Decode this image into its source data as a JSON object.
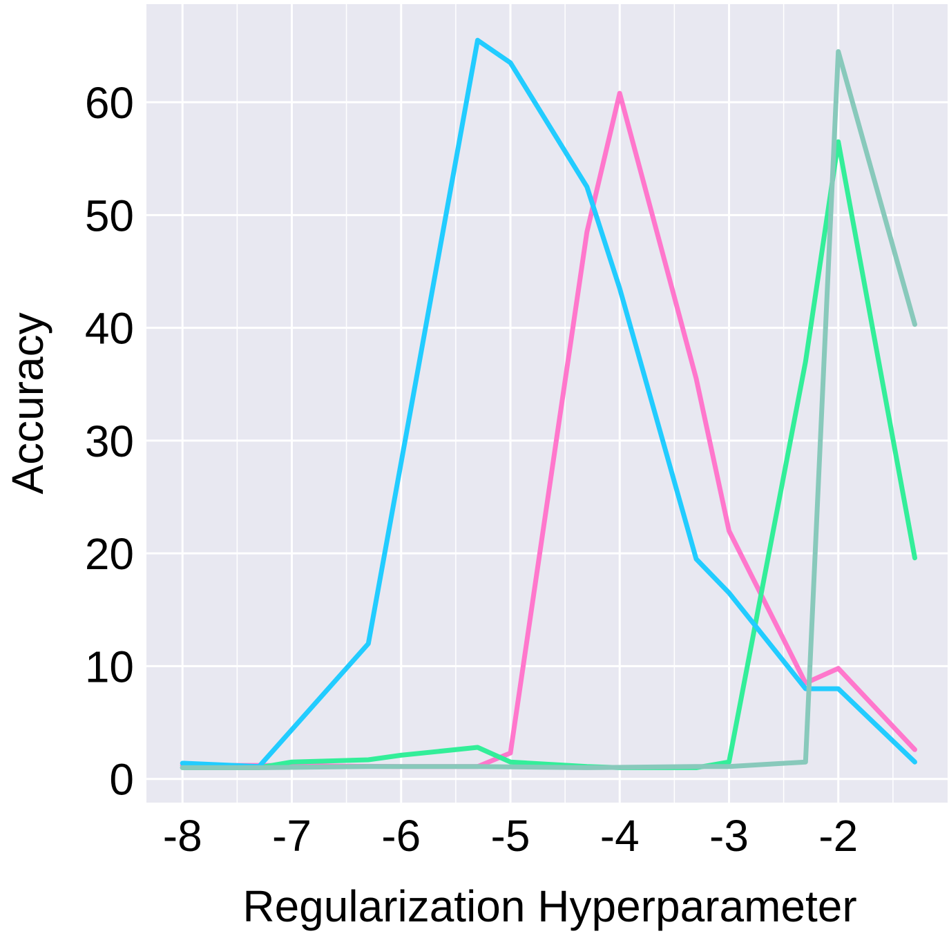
{
  "chart_data": {
    "type": "line",
    "title": "",
    "xlabel": "Regularization Hyperparameter",
    "ylabel": "Accuracy",
    "xlim": [
      -8.33,
      -1.0
    ],
    "ylim": [
      -2.1,
      68.7
    ],
    "xticks": [
      -8,
      -7,
      -6,
      -5,
      -4,
      -3,
      -2
    ],
    "xtick_labels": [
      "-8",
      "-7",
      "-6",
      "-5",
      "-4",
      "-3",
      "-2"
    ],
    "yticks": [
      0,
      10,
      20,
      30,
      40,
      50,
      60
    ],
    "ytick_labels": [
      "0",
      "10",
      "20",
      "30",
      "40",
      "50",
      "60"
    ],
    "grid": true,
    "legend": "none",
    "background": "#e8e8f1",
    "series": [
      {
        "color": "#ff77cc",
        "x": [
          -8,
          -7.3,
          -6,
          -5.3,
          -5,
          -4.3,
          -4,
          -3.3,
          -3,
          -2.3,
          -2,
          -1.3
        ],
        "y": [
          1.2,
          1.2,
          1.1,
          1.1,
          2.3,
          48.5,
          60.8,
          35.5,
          22.0,
          8.5,
          9.8,
          2.6
        ]
      },
      {
        "color": "#33ee99",
        "x": [
          -8,
          -7.3,
          -7,
          -6.3,
          -6,
          -5.3,
          -5,
          -4.3,
          -4,
          -3.3,
          -3,
          -2.3,
          -2,
          -1.3
        ],
        "y": [
          1.0,
          1.0,
          1.5,
          1.7,
          2.1,
          2.8,
          1.5,
          1.1,
          1.0,
          1.0,
          1.5,
          37.0,
          56.5,
          19.6
        ]
      },
      {
        "color": "#22ccff",
        "x": [
          -8,
          -7.3,
          -6.3,
          -5.3,
          -5,
          -4.3,
          -4,
          -3.3,
          -3,
          -2.3,
          -2,
          -1.3
        ],
        "y": [
          1.4,
          1.1,
          12.0,
          65.5,
          63.5,
          52.5,
          43.5,
          19.5,
          16.5,
          8.0,
          8.0,
          1.5
        ]
      },
      {
        "color": "#88c9bb",
        "x": [
          -8,
          -7.3,
          -6.3,
          -5.3,
          -4.3,
          -3.3,
          -3,
          -2.3,
          -2,
          -1.3
        ],
        "y": [
          1.0,
          1.0,
          1.1,
          1.1,
          1.0,
          1.1,
          1.1,
          1.5,
          64.5,
          40.3
        ]
      }
    ]
  }
}
